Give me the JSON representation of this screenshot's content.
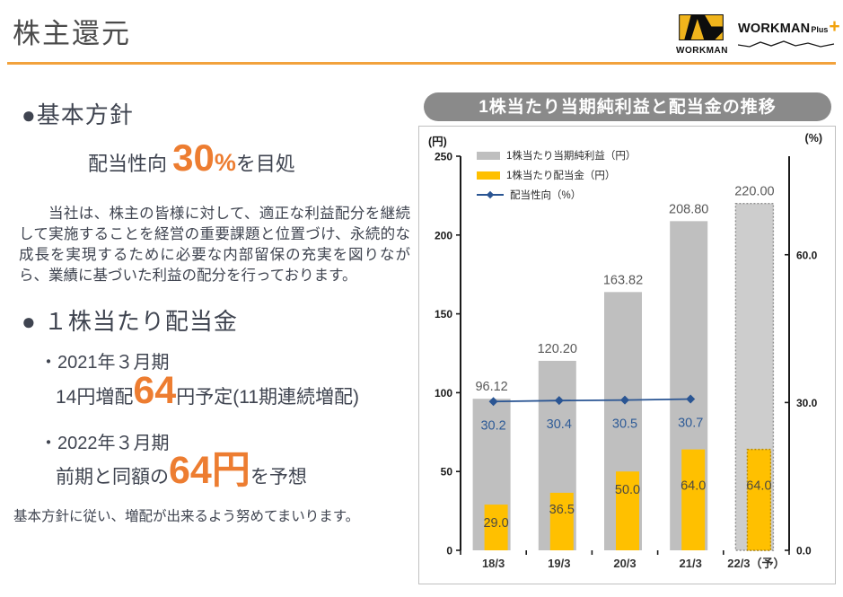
{
  "header": {
    "title": "株主還元"
  },
  "logos": {
    "workman_text": "WORKMAN",
    "plus_name": "WORKMAN",
    "plus_sub": "Plus",
    "plus_sign": "+"
  },
  "policy": {
    "heading": "●基本方針",
    "target_pre": "配当性向 ",
    "target_value": "30",
    "target_unit": "%",
    "target_post": "を目処",
    "paragraph": "当社は、株主の皆様に対して、適正な利益配分を継続して実施することを経営の重要課題と位置づけ、永続的な成長を実現するために必要な内部留保の充実を図りながら、業績に基づいた利益の配分を行っております。"
  },
  "dividend": {
    "heading": "● １株当たり配当金",
    "fy2021_label": "・2021年３月期",
    "fy2021_pre": "14円増配",
    "fy2021_value": "64",
    "fy2021_post": "円予定(11期連続増配)",
    "fy2022_label": "・2022年３月期",
    "fy2022_pre": "前期と同額の",
    "fy2022_value": "64円",
    "fy2022_post": "を予想",
    "closing_note": "基本方針に従い、増配が出来るよう努めてまいります。"
  },
  "colors": {
    "accent_orange": "#ED7D31",
    "rule_orange": "#F2A23C",
    "banner_gray": "#8A8A8A",
    "eps_bar": "#BFBFBF",
    "dividend_bar": "#FFC000",
    "payout_line": "#2A5593"
  },
  "chart_data": {
    "type": "bar",
    "title": "1株当たり当期純利益と配当金の推移",
    "categories": [
      "18/3",
      "19/3",
      "20/3",
      "21/3",
      "22/3（予）"
    ],
    "series": [
      {
        "name": "1株当たり当期純利益（円）",
        "kind": "bar",
        "axis": "left",
        "color": "#BFBFBF",
        "values": [
          96.12,
          120.2,
          163.82,
          208.8,
          220.0
        ],
        "labels": [
          "96.12",
          "120.20",
          "163.82",
          "208.80",
          "220.00"
        ],
        "forecast_from": 4
      },
      {
        "name": "1株当たり配当金（円）",
        "kind": "bar",
        "axis": "left",
        "color": "#FFC000",
        "values": [
          29.0,
          36.5,
          50.0,
          64.0,
          64.0
        ],
        "labels": [
          "29.0",
          "36.5",
          "50.0",
          "64.0",
          "64.0"
        ],
        "label_dy": [
          25,
          23,
          25,
          45,
          45
        ],
        "forecast_from": 4
      },
      {
        "name": "配当性向（%）",
        "kind": "line",
        "axis": "right",
        "color": "#2A5593",
        "values": [
          30.2,
          30.4,
          30.5,
          30.7,
          null
        ],
        "labels": [
          "30.2",
          "30.4",
          "30.5",
          "30.7",
          ""
        ]
      }
    ],
    "left_axis": {
      "unit": "(円)",
      "min": 0,
      "max": 250,
      "ticks": [
        {
          "v": 0,
          "label": "0"
        },
        {
          "v": 50,
          "label": "50"
        },
        {
          "v": 100,
          "label": "100"
        },
        {
          "v": 150,
          "label": "150"
        },
        {
          "v": 200,
          "label": "200"
        },
        {
          "v": 250,
          "label": "250"
        }
      ]
    },
    "right_axis": {
      "unit": "(%)",
      "min": 0,
      "max": 80,
      "ticks": [
        {
          "v": 0,
          "label": "0.0"
        },
        {
          "v": 30,
          "label": "30.0"
        },
        {
          "v": 60,
          "label": "60.0"
        }
      ]
    },
    "legend_position": "top-left",
    "grid": false
  }
}
